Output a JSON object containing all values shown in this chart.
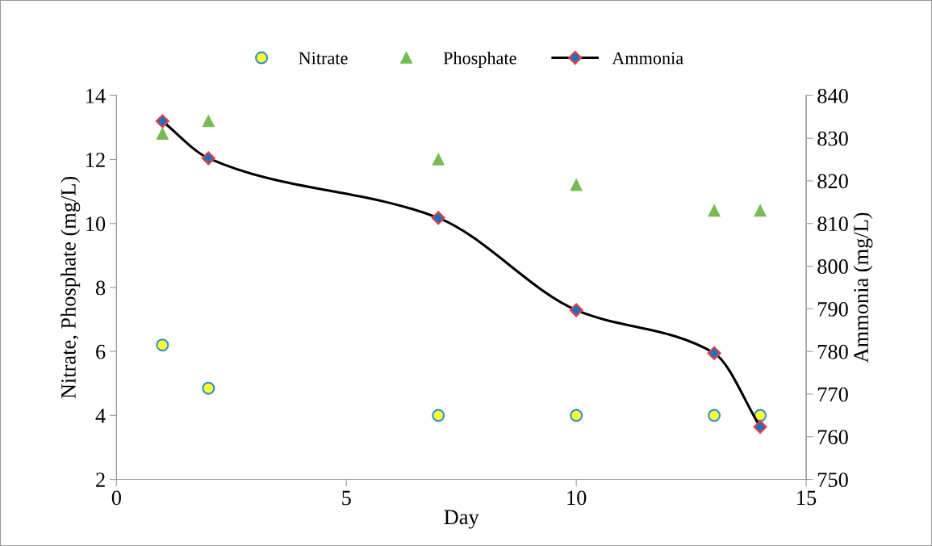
{
  "chart_data": {
    "type": "scatter",
    "xlabel": "Day",
    "ylabel": "Nitrate, Phosphate (mg/L)",
    "y2label": "Ammonia (mg/L)",
    "x": [
      1,
      2,
      7,
      10,
      13,
      14
    ],
    "xlim": [
      0,
      15
    ],
    "xticks": [
      0,
      5,
      10,
      15
    ],
    "ylim": [
      2,
      14
    ],
    "yticks": [
      2,
      4,
      6,
      8,
      10,
      12,
      14
    ],
    "y2lim": [
      750,
      840
    ],
    "y2ticks": [
      750,
      760,
      770,
      780,
      790,
      800,
      810,
      820,
      830,
      840
    ],
    "grid": false,
    "legend": "top",
    "series": [
      {
        "name": "Nitrate",
        "marker": "circle",
        "color": "#ffff33",
        "values": [
          6.2,
          4.85,
          4.0,
          4.0,
          4.0,
          4.0
        ]
      },
      {
        "name": "Phosphate",
        "marker": "triangle",
        "color": "#77bb55",
        "values": [
          12.8,
          13.2,
          12.0,
          11.2,
          10.4,
          10.4
        ]
      },
      {
        "name": "Ammonia",
        "type": "line",
        "marker": "diamond",
        "axis": "y2",
        "color": "#000000",
        "values": [
          834,
          825.3,
          811.3,
          789.7,
          779.6,
          762.3
        ]
      }
    ]
  }
}
